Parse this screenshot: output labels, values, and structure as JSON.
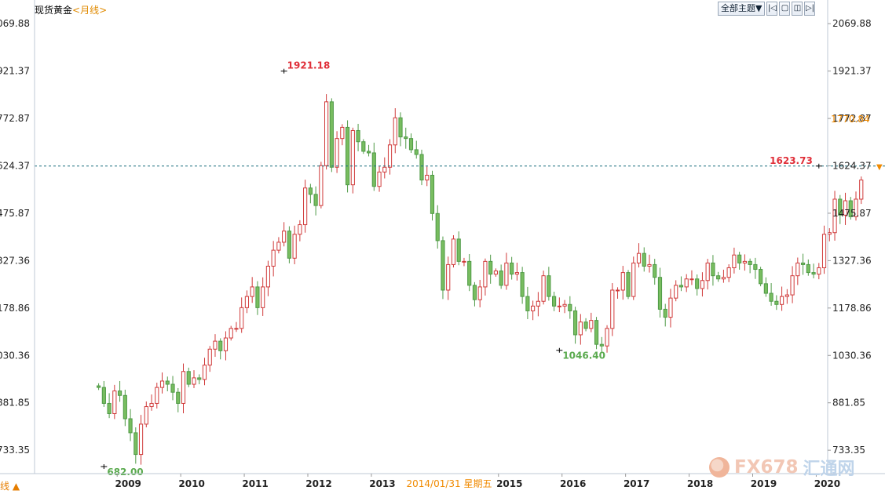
{
  "header": {
    "instrument": "现货黄金",
    "period": "<月线>"
  },
  "toolbar": {
    "topics_label": "全部主题▼",
    "buttons": [
      "|◁",
      "▢",
      "◫",
      "▷|"
    ]
  },
  "bottom_left": "线 ▲",
  "cursor_date": "2014/01/31 星期五",
  "watermark": {
    "text": "FX678",
    "cn": "汇通网"
  },
  "chart_data": {
    "type": "candlestick",
    "title": "现货黄金 <月线>",
    "ylim": [
      660,
      2090
    ],
    "y_ticks": [
      2069.88,
      1921.37,
      1772.87,
      1624.37,
      1475.87,
      1327.36,
      1178.86,
      1030.36,
      881.85,
      733.35
    ],
    "x_ticks": [
      "2009",
      "2010",
      "2011",
      "2012",
      "2013",
      "2015",
      "2016",
      "2017",
      "2018",
      "2019",
      "2020"
    ],
    "x_tick_positions": [
      2009,
      2010,
      2011,
      2012,
      2013,
      2015,
      2016,
      2017,
      2018,
      2019,
      2020
    ],
    "x_domain": [
      2007.7,
      2020.18
    ],
    "current_price": 1623.73,
    "current_price_label": "1624.37",
    "orange_price_label": "1770.84",
    "annotations": [
      {
        "label": "1921.18",
        "date": "2011/08",
        "value": 1921.18,
        "color": "#e0303a"
      },
      {
        "label": "1046.40",
        "date": "2015/12",
        "value": 1046.4,
        "color": "#5aaa4e"
      },
      {
        "label": "682.00",
        "date": "2008/10",
        "value": 682.0,
        "color": "#5aaa4e"
      },
      {
        "label": "1623.73",
        "date": "2020/01",
        "value": 1623.73,
        "color": "#e0303a"
      }
    ],
    "closes": [
      930,
      880,
      848,
      919,
      905,
      832,
      788,
      720,
      815,
      870,
      880,
      930,
      950,
      940,
      915,
      880,
      980,
      940,
      960,
      955,
      1000,
      1050,
      1075,
      1045,
      1085,
      1115,
      1115,
      1180,
      1215,
      1245,
      1180,
      1245,
      1310,
      1360,
      1385,
      1420,
      1335,
      1410,
      1440,
      1555,
      1535,
      1500,
      1625,
      1825,
      1620,
      1710,
      1745,
      1565,
      1735,
      1700,
      1670,
      1665,
      1560,
      1605,
      1620,
      1690,
      1775,
      1715,
      1710,
      1675,
      1660,
      1580,
      1595,
      1475,
      1390,
      1235,
      1315,
      1395,
      1325,
      1325,
      1250,
      1205,
      1245,
      1325,
      1285,
      1295,
      1250,
      1320,
      1285,
      1290,
      1215,
      1170,
      1185,
      1200,
      1280,
      1215,
      1185,
      1185,
      1190,
      1170,
      1095,
      1135,
      1115,
      1140,
      1065,
      1060,
      1115,
      1235,
      1235,
      1290,
      1215,
      1320,
      1350,
      1310,
      1315,
      1275,
      1175,
      1150,
      1210,
      1250,
      1245,
      1270,
      1270,
      1240,
      1265,
      1320,
      1280,
      1270,
      1275,
      1305,
      1345,
      1320,
      1325,
      1315,
      1300,
      1255,
      1225,
      1200,
      1190,
      1215,
      1220,
      1280,
      1320,
      1315,
      1290,
      1285,
      1305,
      1410,
      1415,
      1520,
      1470,
      1515,
      1465,
      1520,
      1580
    ]
  }
}
